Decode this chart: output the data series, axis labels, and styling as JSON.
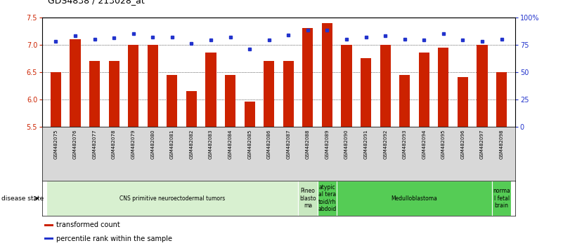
{
  "title": "GDS4838 / 213028_at",
  "samples": [
    "GSM482075",
    "GSM482076",
    "GSM482077",
    "GSM482078",
    "GSM482079",
    "GSM482080",
    "GSM482081",
    "GSM482082",
    "GSM482083",
    "GSM482084",
    "GSM482085",
    "GSM482086",
    "GSM482087",
    "GSM482088",
    "GSM482089",
    "GSM482090",
    "GSM482091",
    "GSM482092",
    "GSM482093",
    "GSM482094",
    "GSM482095",
    "GSM482096",
    "GSM482097",
    "GSM482098"
  ],
  "bar_values": [
    6.5,
    7.1,
    6.7,
    6.7,
    7.0,
    7.0,
    6.45,
    6.15,
    6.85,
    6.45,
    5.95,
    6.7,
    6.7,
    7.3,
    7.4,
    7.0,
    6.75,
    7.0,
    6.45,
    6.85,
    6.95,
    6.4,
    7.0,
    6.5
  ],
  "percentile_values": [
    78,
    83,
    80,
    81,
    85,
    82,
    82,
    76,
    79,
    82,
    71,
    79,
    84,
    88,
    88,
    80,
    82,
    83,
    80,
    79,
    85,
    79,
    78,
    80
  ],
  "ylim_left": [
    5.5,
    7.5
  ],
  "ylim_right": [
    0,
    100
  ],
  "yticks_left": [
    5.5,
    6.0,
    6.5,
    7.0,
    7.5
  ],
  "yticks_right": [
    0,
    25,
    50,
    75,
    100
  ],
  "ytick_labels_right": [
    "0",
    "25",
    "50",
    "75",
    "100%"
  ],
  "bar_color": "#cc2200",
  "dot_color": "#2233cc",
  "bg_color": "#ffffff",
  "disease_groups": [
    {
      "label": "CNS primitive neuroectodermal tumors",
      "start": 0,
      "end": 13,
      "color": "#d8f0d0"
    },
    {
      "label": "Pineo\nblasto\nma",
      "start": 13,
      "end": 14,
      "color": "#c8e8c0"
    },
    {
      "label": "atypic\nal tera\ntoid/rh\nabdoid",
      "start": 14,
      "end": 15,
      "color": "#55cc55"
    },
    {
      "label": "Medulloblastoma",
      "start": 15,
      "end": 23,
      "color": "#55cc55"
    },
    {
      "label": "norma\nl fetal\nbrain",
      "start": 23,
      "end": 24,
      "color": "#55cc55"
    }
  ],
  "disease_state_label": "disease state",
  "legend_items": [
    {
      "color": "#cc2200",
      "label": "transformed count"
    },
    {
      "color": "#2233cc",
      "label": "percentile rank within the sample"
    }
  ],
  "tick_bg_color": "#d8d8d8",
  "grid_yticks": [
    6.0,
    6.5,
    7.0
  ]
}
